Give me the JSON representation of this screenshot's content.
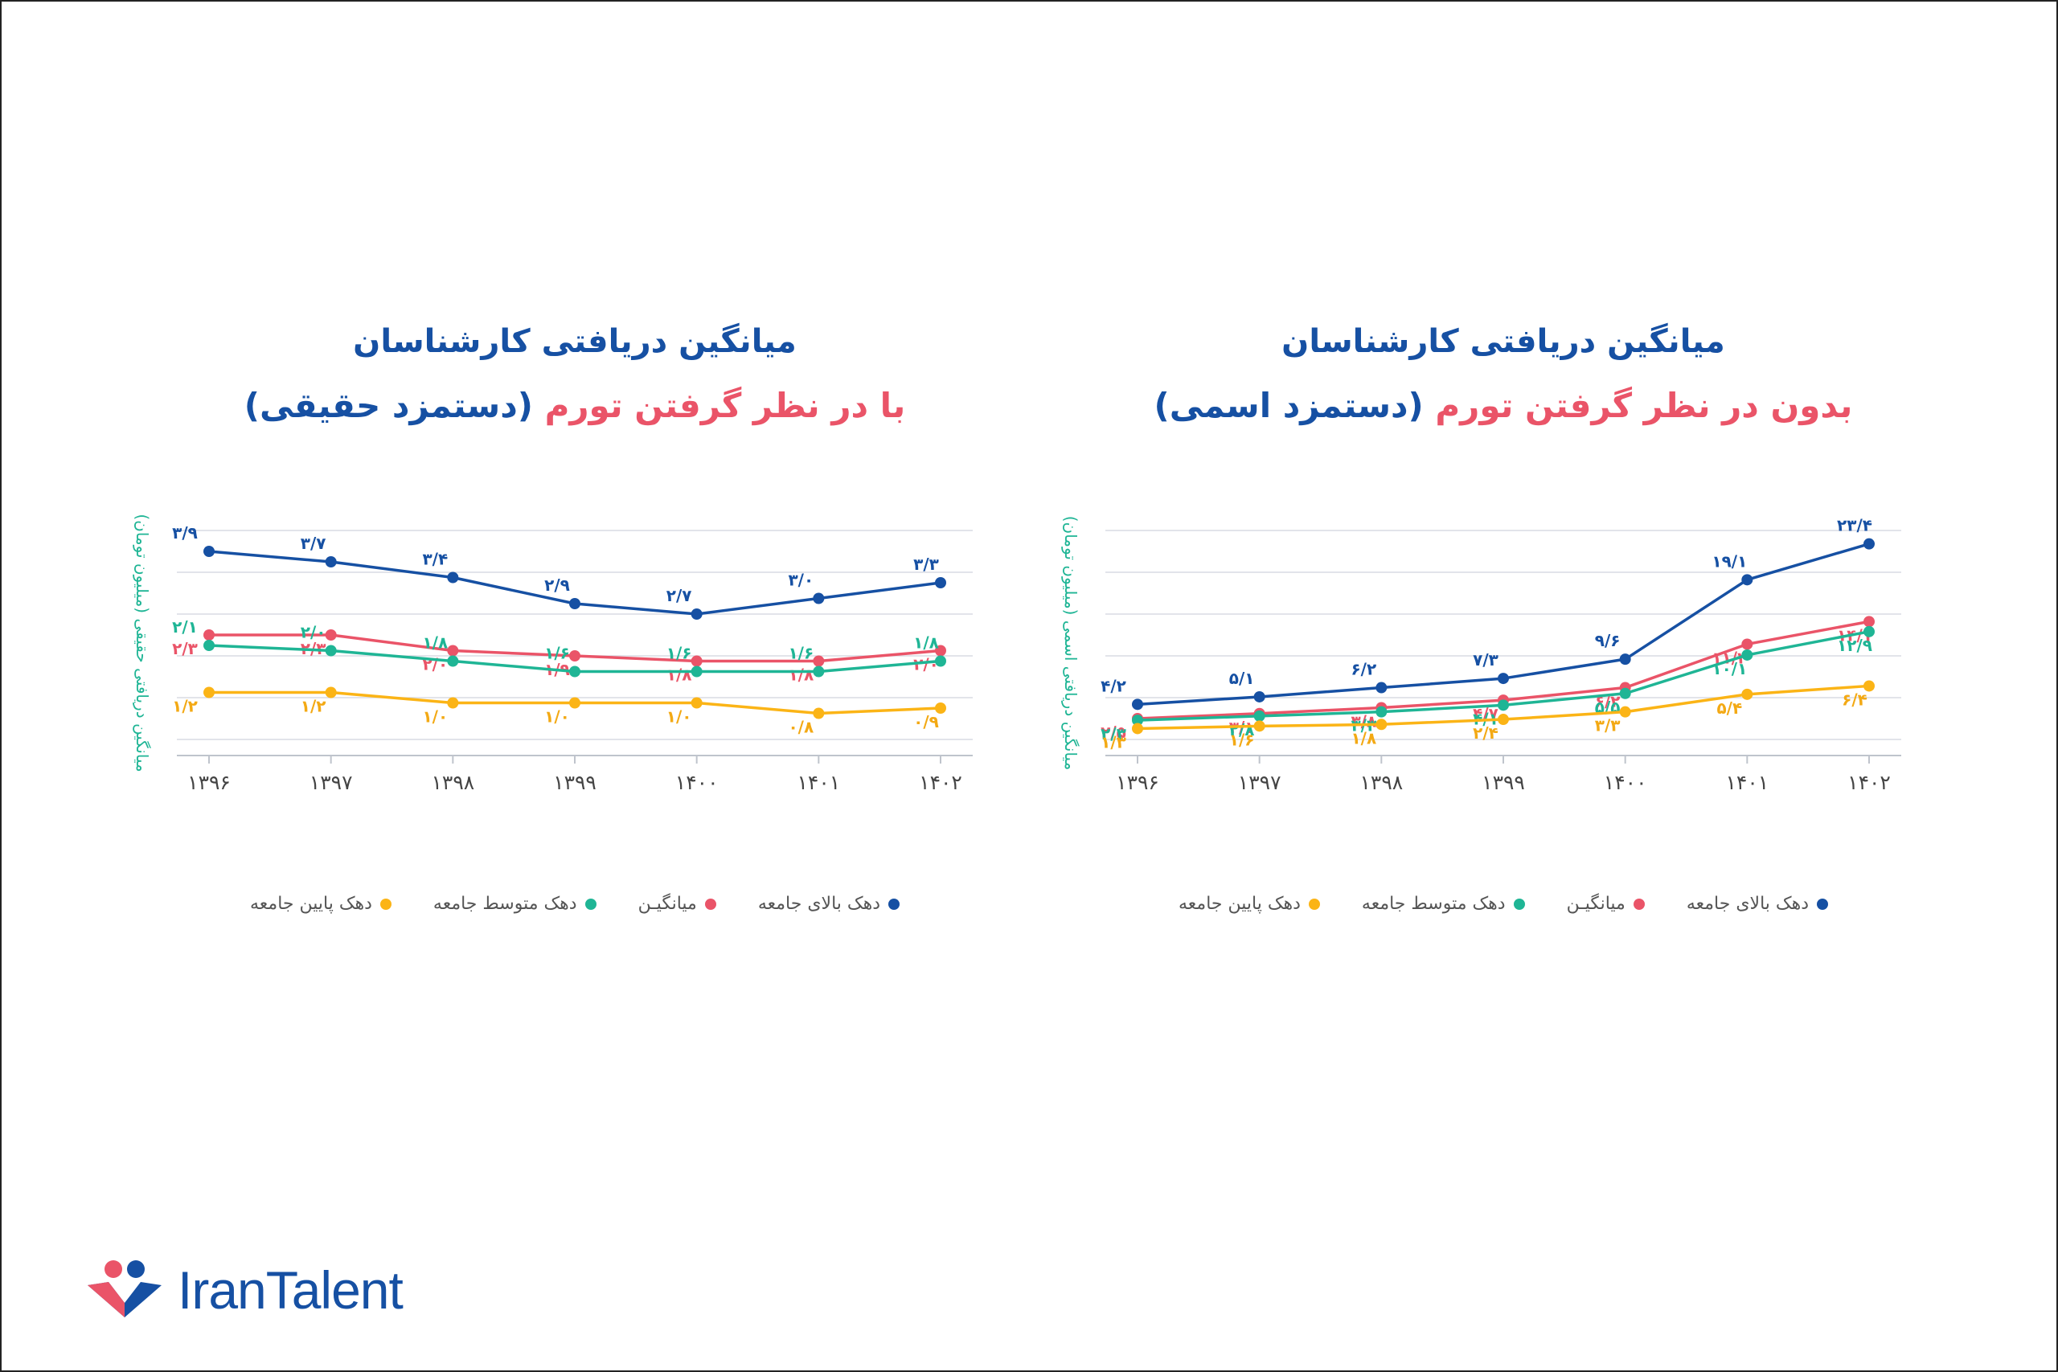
{
  "logo": {
    "text": "IranTalent"
  },
  "chart_data": [
    {
      "type": "line",
      "title_line1": "میانگین دریافتی کارشناسان",
      "title_prefix": "با در نظر گرفتن تورم",
      "title_suffix": "(دستمزد حقیقی)",
      "ylabel": "میانگین دریافتی حقیقی (میلیون تومان)",
      "xlabel": "",
      "categories": [
        "۱۳۹۶",
        "۱۳۹۷",
        "۱۳۹۸",
        "۱۳۹۹",
        "۱۴۰۰",
        "۱۴۰۱",
        "۱۴۰۲"
      ],
      "ylim": [
        0.3,
        4.3
      ],
      "gridlines": [
        0.3,
        1.1,
        1.9,
        2.7,
        3.5,
        4.3
      ],
      "series": [
        {
          "name": "دهک بالای جامعه",
          "color": "#1650a3",
          "label_color": "#1650a3",
          "values": [
            3.9,
            3.7,
            3.4,
            2.9,
            2.7,
            3.0,
            3.3
          ],
          "labels": [
            "۳/۹",
            "۳/۷",
            "۳/۴",
            "۲/۹",
            "۲/۷",
            "۳/۰",
            "۳/۳"
          ]
        },
        {
          "name": "میانگیـن",
          "color": "#ea5468",
          "label_color": "#ea5468",
          "values": [
            2.3,
            2.3,
            2.0,
            1.9,
            1.8,
            1.8,
            2.0
          ],
          "labels": [
            "۲/۳",
            "۲/۳",
            "۲/۰",
            "۱/۹",
            "۱/۸",
            "۱/۸",
            "۲/۰"
          ]
        },
        {
          "name": "دهک متوسط جامعه",
          "color": "#1fb595",
          "label_color": "#1fb595",
          "values": [
            2.1,
            2.0,
            1.8,
            1.6,
            1.6,
            1.6,
            1.8
          ],
          "labels": [
            "۲/۱",
            "۲/۰",
            "۱/۸",
            "۱/۶",
            "۱/۶",
            "۱/۶",
            "۱/۸"
          ]
        },
        {
          "name": "دهک پایین جامعه",
          "color": "#fbb416",
          "label_color": "#f3a914",
          "values": [
            1.2,
            1.2,
            1.0,
            1.0,
            1.0,
            0.8,
            0.9
          ],
          "labels": [
            "۱/۲",
            "۱/۲",
            "۱/۰",
            "۱/۰",
            "۱/۰",
            "۰/۸",
            "۰/۹"
          ]
        }
      ]
    },
    {
      "type": "line",
      "title_line1": "میانگین دریافتی کارشناسان",
      "title_prefix": "بدون در نظر گرفتن تورم",
      "title_suffix": "(دستمزد اسمی)",
      "ylabel": "میانگین دریافتی اسمی (میلیون تومان)",
      "xlabel": "",
      "categories": [
        "۱۳۹۶",
        "۱۳۹۷",
        "۱۳۹۸",
        "۱۳۹۹",
        "۱۴۰۰",
        "۱۴۰۱",
        "۱۴۰۲"
      ],
      "ylim": [
        0,
        25
      ],
      "gridlines": [
        0,
        5,
        10,
        15,
        20,
        25
      ],
      "series": [
        {
          "name": "دهک بالای جامعه",
          "color": "#1650a3",
          "label_color": "#1650a3",
          "values": [
            4.2,
            5.1,
            6.2,
            7.3,
            9.6,
            19.1,
            23.4
          ],
          "labels": [
            "۴/۲",
            "۵/۱",
            "۶/۲",
            "۷/۳",
            "۹/۶",
            "۱۹/۱",
            "۲۳/۴"
          ]
        },
        {
          "name": "میانگیـن",
          "color": "#ea5468",
          "label_color": "#ea5468",
          "values": [
            2.5,
            3.1,
            3.8,
            4.7,
            6.2,
            11.4,
            14.1
          ],
          "labels": [
            "۲/۵",
            "۳/۱",
            "۳/۸",
            "۴/۷",
            "۶/۲",
            "۱۱/۴",
            "۱۴/۱"
          ]
        },
        {
          "name": "دهک متوسط جامعه",
          "color": "#1fb595",
          "label_color": "#1fb595",
          "values": [
            2.3,
            2.8,
            3.3,
            4.1,
            5.5,
            10.1,
            12.9
          ],
          "labels": [
            "۲/۳",
            "۲/۸",
            "۳/۳",
            "۴/۱",
            "۵/۵",
            "۱۰/۱",
            "۱۲/۹"
          ]
        },
        {
          "name": "دهک پایین جامعه",
          "color": "#fbb416",
          "label_color": "#f3a914",
          "values": [
            1.3,
            1.6,
            1.8,
            2.4,
            3.3,
            5.4,
            6.4
          ],
          "labels": [
            "۱/۳",
            "۱/۶",
            "۱/۸",
            "۲/۴",
            "۳/۳",
            "۵/۴",
            "۶/۴"
          ]
        }
      ]
    }
  ],
  "legend_order": [
    3,
    2,
    1,
    0
  ]
}
